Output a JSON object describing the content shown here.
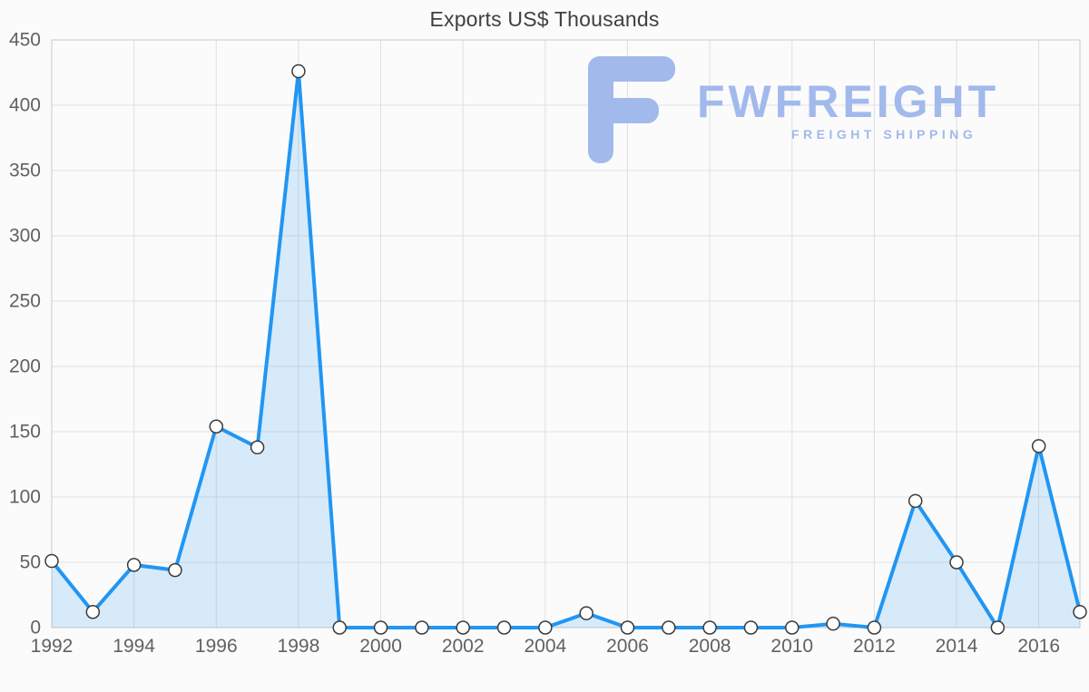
{
  "page": {
    "title": "Exports US$ Thousands"
  },
  "watermark": {
    "brand": "FWFREIGHT",
    "tagline": "FREIGHT SHIPPING",
    "color": "#a2b9ec"
  },
  "chart_data": {
    "type": "area",
    "title": "Exports US$ Thousands",
    "xlabel": "",
    "ylabel": "",
    "x": [
      1992,
      1993,
      1994,
      1995,
      1996,
      1997,
      1998,
      1999,
      2000,
      2001,
      2002,
      2003,
      2004,
      2005,
      2006,
      2007,
      2008,
      2009,
      2010,
      2011,
      2012,
      2013,
      2014,
      2015,
      2016,
      2017
    ],
    "series": [
      {
        "name": "Exports US$ Thousands",
        "values": [
          51,
          12,
          48,
          44,
          154,
          138,
          426,
          0,
          0,
          0,
          0,
          0,
          0,
          11,
          0,
          0,
          0,
          0,
          0,
          3,
          0,
          97,
          50,
          0,
          139,
          12
        ]
      }
    ],
    "ylim": [
      0,
      450
    ],
    "yticks": [
      0,
      50,
      100,
      150,
      200,
      250,
      300,
      350,
      400,
      450
    ],
    "xticks": [
      1992,
      1994,
      1996,
      1998,
      2000,
      2002,
      2004,
      2006,
      2008,
      2010,
      2012,
      2014,
      2016
    ],
    "grid": true,
    "legend_position": "none",
    "line_color": "#2196f3",
    "fill_color": "rgba(33,150,243,0.16)",
    "grid_color": "#e0e0e0",
    "axis_color": "#c9c9c9",
    "tick_color": "#616161",
    "marker": {
      "fill": "#ffffff",
      "stroke": "#3a3a3a",
      "radius": 7
    }
  }
}
